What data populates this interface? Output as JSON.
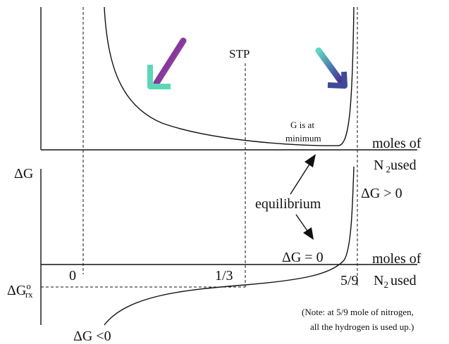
{
  "upper": {
    "stp": "STP",
    "minimum_line1": "G is at",
    "minimum_line2": "minimum",
    "axis_line1": "moles of",
    "axis_n": "N",
    "axis_sub": "2",
    "axis_rest": "used"
  },
  "lower": {
    "y_label": "ΔG",
    "equilibrium": "equilibrium",
    "positive": "ΔG > 0",
    "zero": "ΔG = 0",
    "axis_line1": "moles of",
    "axis_n": "N",
    "axis_sub": "2",
    "axis_rest": "used",
    "tick_0": "0",
    "tick_third": "1/3",
    "tick_five_ninths": "5/9",
    "g_base": "ΔG",
    "g_sup": "o",
    "g_sub": "rx",
    "negative": "ΔG <0"
  },
  "note": {
    "line1": "(Note: at 5/9 mole of nitrogen,",
    "line2": "all the hydrogen is used up.)"
  }
}
